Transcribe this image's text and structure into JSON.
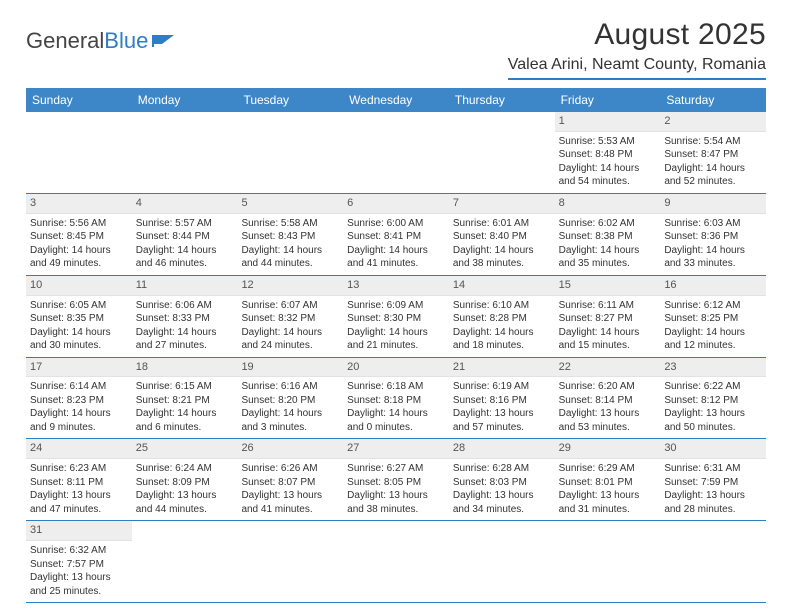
{
  "logo": {
    "text1": "General",
    "text2": "Blue"
  },
  "title": "August 2025",
  "location": "Valea Arini, Neamt County, Romania",
  "colors": {
    "header_bg": "#3d87c9",
    "accent": "#2d7dc7",
    "daynum_bg": "#eeeeee",
    "text": "#333333"
  },
  "day_names": [
    "Sunday",
    "Monday",
    "Tuesday",
    "Wednesday",
    "Thursday",
    "Friday",
    "Saturday"
  ],
  "weeks": [
    [
      null,
      null,
      null,
      null,
      null,
      {
        "n": "1",
        "sr": "Sunrise: 5:53 AM",
        "ss": "Sunset: 8:48 PM",
        "dl": "Daylight: 14 hours and 54 minutes."
      },
      {
        "n": "2",
        "sr": "Sunrise: 5:54 AM",
        "ss": "Sunset: 8:47 PM",
        "dl": "Daylight: 14 hours and 52 minutes."
      }
    ],
    [
      {
        "n": "3",
        "sr": "Sunrise: 5:56 AM",
        "ss": "Sunset: 8:45 PM",
        "dl": "Daylight: 14 hours and 49 minutes."
      },
      {
        "n": "4",
        "sr": "Sunrise: 5:57 AM",
        "ss": "Sunset: 8:44 PM",
        "dl": "Daylight: 14 hours and 46 minutes."
      },
      {
        "n": "5",
        "sr": "Sunrise: 5:58 AM",
        "ss": "Sunset: 8:43 PM",
        "dl": "Daylight: 14 hours and 44 minutes."
      },
      {
        "n": "6",
        "sr": "Sunrise: 6:00 AM",
        "ss": "Sunset: 8:41 PM",
        "dl": "Daylight: 14 hours and 41 minutes."
      },
      {
        "n": "7",
        "sr": "Sunrise: 6:01 AM",
        "ss": "Sunset: 8:40 PM",
        "dl": "Daylight: 14 hours and 38 minutes."
      },
      {
        "n": "8",
        "sr": "Sunrise: 6:02 AM",
        "ss": "Sunset: 8:38 PM",
        "dl": "Daylight: 14 hours and 35 minutes."
      },
      {
        "n": "9",
        "sr": "Sunrise: 6:03 AM",
        "ss": "Sunset: 8:36 PM",
        "dl": "Daylight: 14 hours and 33 minutes."
      }
    ],
    [
      {
        "n": "10",
        "sr": "Sunrise: 6:05 AM",
        "ss": "Sunset: 8:35 PM",
        "dl": "Daylight: 14 hours and 30 minutes."
      },
      {
        "n": "11",
        "sr": "Sunrise: 6:06 AM",
        "ss": "Sunset: 8:33 PM",
        "dl": "Daylight: 14 hours and 27 minutes."
      },
      {
        "n": "12",
        "sr": "Sunrise: 6:07 AM",
        "ss": "Sunset: 8:32 PM",
        "dl": "Daylight: 14 hours and 24 minutes."
      },
      {
        "n": "13",
        "sr": "Sunrise: 6:09 AM",
        "ss": "Sunset: 8:30 PM",
        "dl": "Daylight: 14 hours and 21 minutes."
      },
      {
        "n": "14",
        "sr": "Sunrise: 6:10 AM",
        "ss": "Sunset: 8:28 PM",
        "dl": "Daylight: 14 hours and 18 minutes."
      },
      {
        "n": "15",
        "sr": "Sunrise: 6:11 AM",
        "ss": "Sunset: 8:27 PM",
        "dl": "Daylight: 14 hours and 15 minutes."
      },
      {
        "n": "16",
        "sr": "Sunrise: 6:12 AM",
        "ss": "Sunset: 8:25 PM",
        "dl": "Daylight: 14 hours and 12 minutes."
      }
    ],
    [
      {
        "n": "17",
        "sr": "Sunrise: 6:14 AM",
        "ss": "Sunset: 8:23 PM",
        "dl": "Daylight: 14 hours and 9 minutes."
      },
      {
        "n": "18",
        "sr": "Sunrise: 6:15 AM",
        "ss": "Sunset: 8:21 PM",
        "dl": "Daylight: 14 hours and 6 minutes."
      },
      {
        "n": "19",
        "sr": "Sunrise: 6:16 AM",
        "ss": "Sunset: 8:20 PM",
        "dl": "Daylight: 14 hours and 3 minutes."
      },
      {
        "n": "20",
        "sr": "Sunrise: 6:18 AM",
        "ss": "Sunset: 8:18 PM",
        "dl": "Daylight: 14 hours and 0 minutes."
      },
      {
        "n": "21",
        "sr": "Sunrise: 6:19 AM",
        "ss": "Sunset: 8:16 PM",
        "dl": "Daylight: 13 hours and 57 minutes."
      },
      {
        "n": "22",
        "sr": "Sunrise: 6:20 AM",
        "ss": "Sunset: 8:14 PM",
        "dl": "Daylight: 13 hours and 53 minutes."
      },
      {
        "n": "23",
        "sr": "Sunrise: 6:22 AM",
        "ss": "Sunset: 8:12 PM",
        "dl": "Daylight: 13 hours and 50 minutes."
      }
    ],
    [
      {
        "n": "24",
        "sr": "Sunrise: 6:23 AM",
        "ss": "Sunset: 8:11 PM",
        "dl": "Daylight: 13 hours and 47 minutes."
      },
      {
        "n": "25",
        "sr": "Sunrise: 6:24 AM",
        "ss": "Sunset: 8:09 PM",
        "dl": "Daylight: 13 hours and 44 minutes."
      },
      {
        "n": "26",
        "sr": "Sunrise: 6:26 AM",
        "ss": "Sunset: 8:07 PM",
        "dl": "Daylight: 13 hours and 41 minutes."
      },
      {
        "n": "27",
        "sr": "Sunrise: 6:27 AM",
        "ss": "Sunset: 8:05 PM",
        "dl": "Daylight: 13 hours and 38 minutes."
      },
      {
        "n": "28",
        "sr": "Sunrise: 6:28 AM",
        "ss": "Sunset: 8:03 PM",
        "dl": "Daylight: 13 hours and 34 minutes."
      },
      {
        "n": "29",
        "sr": "Sunrise: 6:29 AM",
        "ss": "Sunset: 8:01 PM",
        "dl": "Daylight: 13 hours and 31 minutes."
      },
      {
        "n": "30",
        "sr": "Sunrise: 6:31 AM",
        "ss": "Sunset: 7:59 PM",
        "dl": "Daylight: 13 hours and 28 minutes."
      }
    ],
    [
      {
        "n": "31",
        "sr": "Sunrise: 6:32 AM",
        "ss": "Sunset: 7:57 PM",
        "dl": "Daylight: 13 hours and 25 minutes."
      },
      null,
      null,
      null,
      null,
      null,
      null
    ]
  ]
}
